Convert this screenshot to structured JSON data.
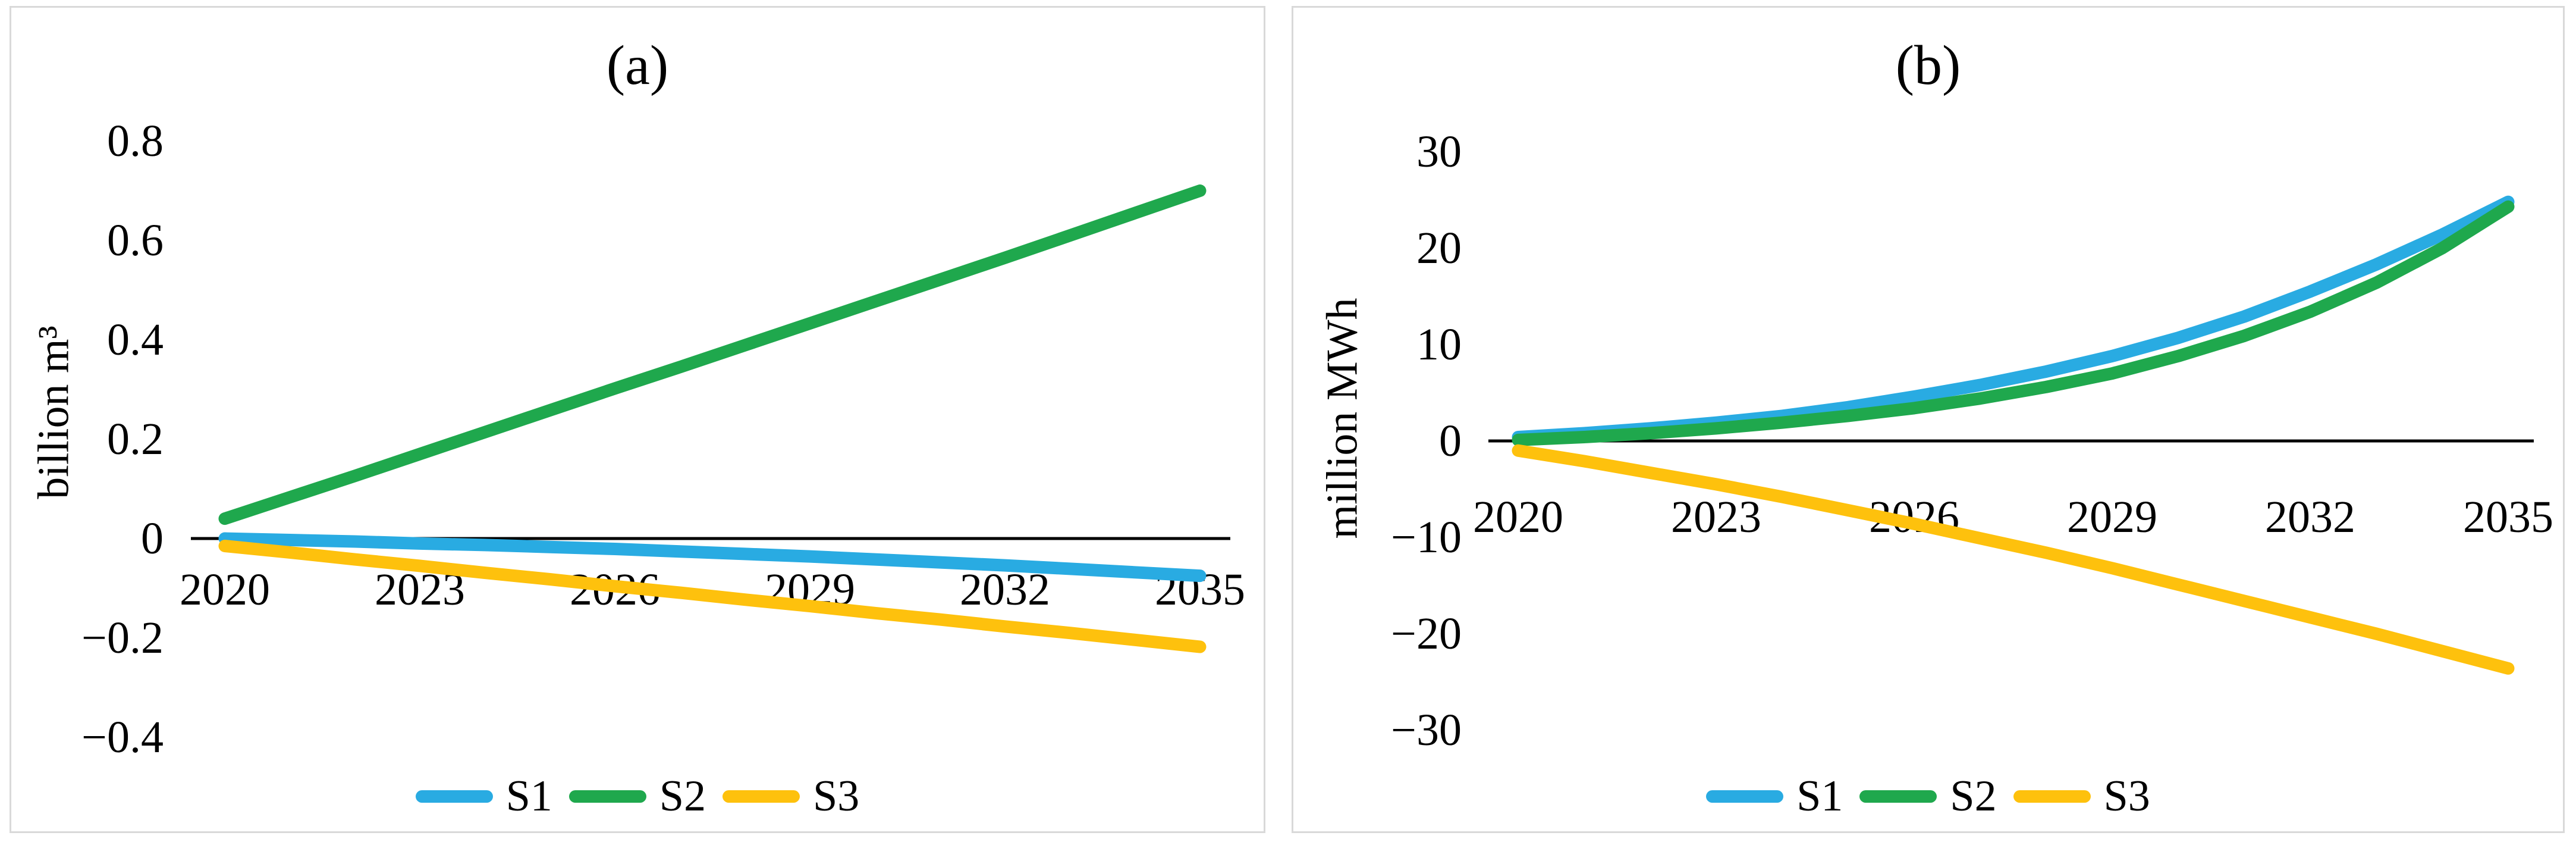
{
  "figure": {
    "background_color": "#ffffff",
    "panel_border_color": "#d9d9d9",
    "axis_color": "#000000",
    "text_color": "#000000"
  },
  "chart_data": [
    {
      "id": "a",
      "type": "line",
      "title": "(a)",
      "ylabel": "billion m³",
      "xlabel": "",
      "grid": false,
      "legend_position": "bottom-center",
      "ylim": [
        -0.45,
        0.85
      ],
      "x": [
        2020,
        2021,
        2022,
        2023,
        2024,
        2025,
        2026,
        2027,
        2028,
        2029,
        2030,
        2031,
        2032,
        2033,
        2034,
        2035
      ],
      "x_tick_labels": [
        "2020",
        "2023",
        "2026",
        "2029",
        "2032",
        "2035"
      ],
      "x_tick_years": [
        2020,
        2023,
        2026,
        2029,
        2032,
        2035
      ],
      "y_tick_labels": [
        "0.8",
        "0.6",
        "0.4",
        "0.2",
        "0",
        "−0.2",
        "−0.4"
      ],
      "y_tick_values": [
        0.8,
        0.6,
        0.4,
        0.2,
        0,
        -0.2,
        -0.4
      ],
      "series": [
        {
          "name": "S1",
          "color": "#29abe2",
          "values": [
            0.0,
            -0.003,
            -0.006,
            -0.01,
            -0.013,
            -0.017,
            -0.021,
            -0.026,
            -0.031,
            -0.036,
            -0.042,
            -0.048,
            -0.054,
            -0.061,
            -0.068,
            -0.075
          ]
        },
        {
          "name": "S2",
          "color": "#1fa84d",
          "values": [
            0.04,
            0.083,
            0.126,
            0.17,
            0.214,
            0.258,
            0.302,
            0.345,
            0.389,
            0.433,
            0.477,
            0.521,
            0.565,
            0.61,
            0.655,
            0.7
          ]
        },
        {
          "name": "S3",
          "color": "#fec10d",
          "values": [
            -0.015,
            -0.028,
            -0.042,
            -0.055,
            -0.069,
            -0.082,
            -0.096,
            -0.109,
            -0.123,
            -0.136,
            -0.15,
            -0.163,
            -0.177,
            -0.19,
            -0.204,
            -0.218
          ]
        }
      ]
    },
    {
      "id": "b",
      "type": "line",
      "title": "(b)",
      "ylabel": "million MWh",
      "xlabel": "",
      "grid": false,
      "legend_position": "bottom-center",
      "ylim": [
        -33,
        33
      ],
      "x": [
        2020,
        2021,
        2022,
        2023,
        2024,
        2025,
        2026,
        2027,
        2028,
        2029,
        2030,
        2031,
        2032,
        2033,
        2034,
        2035
      ],
      "x_tick_labels": [
        "2020",
        "2023",
        "2026",
        "2029",
        "2032",
        "2035"
      ],
      "x_tick_years": [
        2020,
        2023,
        2026,
        2029,
        2032,
        2035
      ],
      "y_tick_labels": [
        "30",
        "20",
        "10",
        "0",
        "−10",
        "−20",
        "−30"
      ],
      "y_tick_values": [
        30,
        20,
        10,
        0,
        -10,
        -20,
        -30
      ],
      "series": [
        {
          "name": "S1",
          "color": "#29abe2",
          "values": [
            0.4,
            0.8,
            1.3,
            1.9,
            2.6,
            3.5,
            4.6,
            5.8,
            7.2,
            8.8,
            10.7,
            12.9,
            15.5,
            18.3,
            21.4,
            24.8
          ]
        },
        {
          "name": "S2",
          "color": "#1fa84d",
          "values": [
            0.1,
            0.4,
            0.8,
            1.3,
            1.9,
            2.6,
            3.4,
            4.4,
            5.6,
            7.0,
            8.8,
            10.9,
            13.4,
            16.4,
            20.0,
            24.3
          ]
        },
        {
          "name": "S3",
          "color": "#fec10d",
          "values": [
            -1.0,
            -2.1,
            -3.3,
            -4.5,
            -5.8,
            -7.2,
            -8.6,
            -10.1,
            -11.6,
            -13.2,
            -14.9,
            -16.6,
            -18.3,
            -20.0,
            -21.8,
            -23.6
          ]
        }
      ]
    }
  ]
}
